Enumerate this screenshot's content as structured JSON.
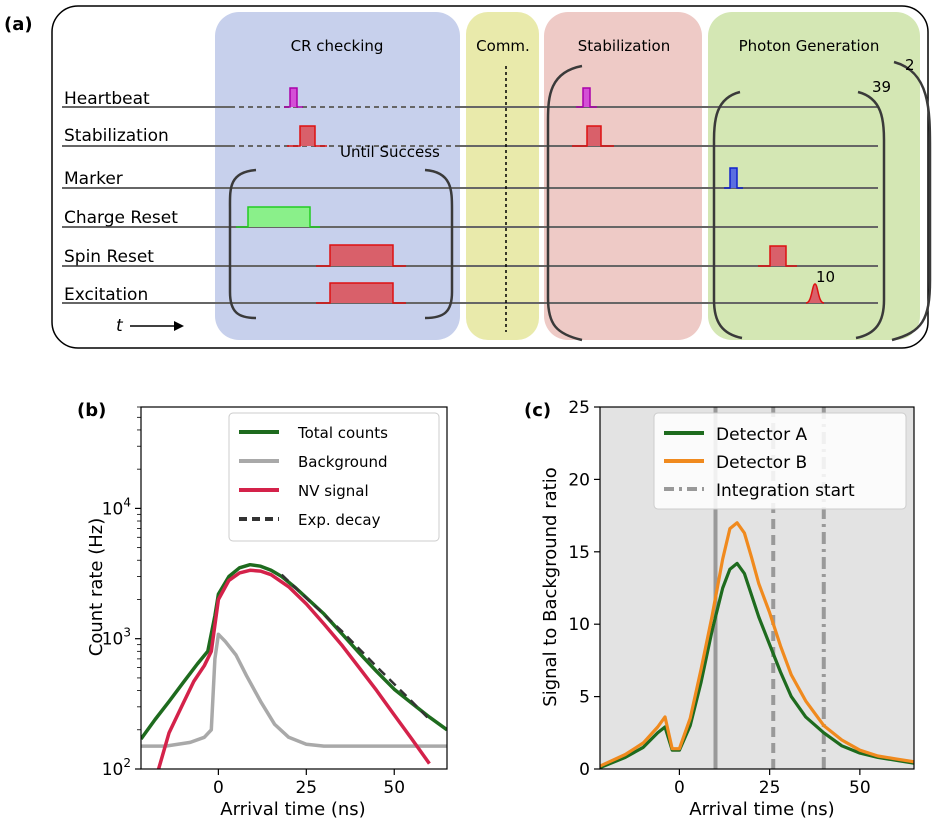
{
  "panel_a": {
    "label": "(a)",
    "phases": {
      "cr": "CR checking",
      "comm": "Comm.",
      "stab": "Stabilization",
      "photon": "Photon Generation"
    },
    "channels": [
      "Heartbeat",
      "Stabilization",
      "Marker",
      "Charge Reset",
      "Spin Reset",
      "Excitation"
    ],
    "until_success": "Until Success",
    "time_label": "t",
    "repeat_inner": "10",
    "repeat_middle": "39",
    "repeat_outer": "2",
    "colors": {
      "cr_bg": "#c7d0ec",
      "comm_bg": "#e9eaab",
      "stab_bg": "#eecac6",
      "photon_bg": "#d4e7b4",
      "pulse_red": "#d9606a",
      "pulse_green": "#8af08a",
      "pulse_magenta": "#d44fd6",
      "pulse_blue": "#5a6fe0"
    }
  },
  "panel_b": {
    "label": "(b)",
    "chart_data": {
      "type": "line",
      "xlabel": "Arrival time (ns)",
      "ylabel": "Count rate (Hz)",
      "xlim": [
        -22,
        65
      ],
      "ylim": [
        100,
        60000
      ],
      "log_y": true,
      "xticks": [
        "0",
        "25",
        "50"
      ],
      "legend_position": "top-right",
      "series": [
        {
          "name": "Total counts",
          "color": "#1e6b1e",
          "x": [
            -22,
            -18,
            -14,
            -10,
            -6,
            -3,
            -1,
            0,
            3,
            6,
            9,
            12,
            15,
            18,
            22,
            26,
            30,
            35,
            40,
            45,
            50,
            55,
            60,
            65
          ],
          "y": [
            170,
            240,
            330,
            460,
            640,
            800,
            1500,
            2200,
            3000,
            3500,
            3700,
            3600,
            3350,
            3000,
            2450,
            1950,
            1550,
            1100,
            780,
            560,
            410,
            320,
            250,
            200
          ]
        },
        {
          "name": "Background",
          "color": "#a9a9a9",
          "x": [
            -22,
            -15,
            -8,
            -4,
            -2,
            -1,
            0,
            2,
            5,
            8,
            12,
            16,
            20,
            25,
            30,
            40,
            50,
            60,
            65
          ],
          "y": [
            150,
            150,
            160,
            175,
            200,
            700,
            1080,
            950,
            750,
            520,
            330,
            220,
            175,
            155,
            150,
            150,
            150,
            150,
            150
          ]
        },
        {
          "name": "NV signal",
          "color": "#d4224a",
          "x": [
            -17,
            -14,
            -10,
            -7,
            -4,
            -2,
            0,
            3,
            6,
            9,
            12,
            15,
            20,
            25,
            30,
            35,
            40,
            45,
            50,
            55,
            60
          ],
          "y": [
            100,
            190,
            320,
            470,
            620,
            800,
            2000,
            2800,
            3200,
            3350,
            3300,
            3100,
            2500,
            1850,
            1300,
            900,
            600,
            400,
            260,
            170,
            110
          ]
        },
        {
          "name": "Exp. decay",
          "color": "#333333",
          "dashed": true,
          "x": [
            18,
            25,
            35,
            45,
            55,
            60
          ],
          "y": [
            3100,
            2050,
            1150,
            610,
            330,
            240
          ]
        }
      ]
    }
  },
  "panel_c": {
    "label": "(c)",
    "chart_data": {
      "type": "line",
      "xlabel": "Arrival time (ns)",
      "ylabel": "Signal to Background ratio",
      "xlim": [
        -22,
        65
      ],
      "ylim": [
        0,
        25
      ],
      "xticks": [
        "0",
        "25",
        "50"
      ],
      "yticks": [
        "0",
        "5",
        "10",
        "15",
        "20",
        "25"
      ],
      "legend_position": "top-right",
      "background_color": "#e3e3e3",
      "series": [
        {
          "name": "Detector A",
          "color": "#1e6b1e",
          "x": [
            -22,
            -15,
            -10,
            -6,
            -4,
            -2,
            0,
            3,
            6,
            9,
            12,
            14,
            16,
            18,
            20,
            22,
            25,
            28,
            31,
            35,
            40,
            45,
            50,
            55,
            60,
            65
          ],
          "y": [
            0.1,
            0.8,
            1.5,
            2.5,
            2.9,
            1.3,
            1.3,
            3.0,
            6.0,
            9.5,
            12.5,
            13.8,
            14.2,
            13.5,
            12.0,
            10.5,
            8.6,
            6.7,
            5.0,
            3.6,
            2.5,
            1.6,
            1.1,
            0.8,
            0.6,
            0.4
          ]
        },
        {
          "name": "Detector B",
          "color": "#f08a1e",
          "x": [
            -22,
            -15,
            -10,
            -6,
            -4,
            -2,
            0,
            3,
            6,
            9,
            12,
            14,
            16,
            18,
            20,
            22,
            25,
            28,
            31,
            35,
            40,
            45,
            50,
            55,
            60,
            65
          ],
          "y": [
            0.2,
            1.0,
            1.8,
            2.9,
            3.6,
            1.4,
            1.4,
            3.5,
            6.9,
            10.5,
            14.5,
            16.6,
            17.0,
            16.3,
            14.6,
            12.8,
            10.8,
            8.5,
            6.5,
            4.7,
            3.0,
            2.0,
            1.3,
            0.9,
            0.7,
            0.5
          ]
        }
      ],
      "integration_start": {
        "name": "Integration start",
        "color": "#999999",
        "lines": [
          10,
          26,
          40
        ]
      }
    }
  }
}
